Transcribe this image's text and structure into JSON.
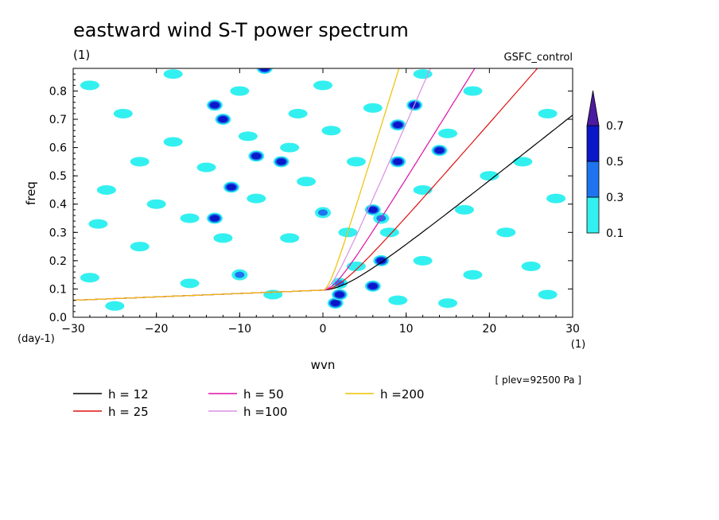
{
  "chart_data": {
    "type": "contour",
    "title": "eastward wind S-T power spectrum",
    "subtitle": "(1)",
    "run_label": "GSFC_control",
    "xlabel": "wvn",
    "x_units": "(1)",
    "ylabel": "freq",
    "y_units": "(day-1)",
    "xlim": [
      -30,
      30
    ],
    "ylim": [
      0,
      0.88
    ],
    "x_ticks": [
      "-30",
      "-20",
      "-10",
      "0",
      "10",
      "20",
      "30"
    ],
    "y_ticks": [
      "0.0",
      "0.1",
      "0.2",
      "0.3",
      "0.4",
      "0.5",
      "0.6",
      "0.7",
      "0.8"
    ],
    "annotation": "[ plev=92500 Pa ]",
    "colorbar": {
      "levels": [
        "0.1",
        "0.3",
        "0.5",
        "0.7"
      ],
      "colors": [
        "#33f0f0",
        "#1e74f0",
        "#0a18c8",
        "#4a1aa0"
      ]
    },
    "dispersion_curves": [
      {
        "name": "h = 12",
        "h": 12,
        "color": "#000000"
      },
      {
        "name": "h = 25",
        "h": 25,
        "color": "#e01010"
      },
      {
        "name": "h = 50",
        "h": 50,
        "color": "#e010a8"
      },
      {
        "name": "h =100",
        "h": 100,
        "color": "#d890e0"
      },
      {
        "name": "h =200",
        "h": 200,
        "color": "#f0c000"
      }
    ],
    "contour_blobs": [
      {
        "x": 1.5,
        "y": 0.05,
        "level": "0.5"
      },
      {
        "x": 2,
        "y": 0.08,
        "level": "0.5"
      },
      {
        "x": 6,
        "y": 0.11,
        "level": "0.5"
      },
      {
        "x": 7,
        "y": 0.2,
        "level": "0.5"
      },
      {
        "x": 9,
        "y": 0.55,
        "level": "0.5"
      },
      {
        "x": 9,
        "y": 0.68,
        "level": "0.5"
      },
      {
        "x": -13,
        "y": 0.75,
        "level": "0.5"
      },
      {
        "x": -12,
        "y": 0.7,
        "level": "0.5"
      },
      {
        "x": -8,
        "y": 0.57,
        "level": "0.5"
      },
      {
        "x": -7,
        "y": 0.88,
        "level": "0.5"
      },
      {
        "x": -13,
        "y": 0.35,
        "level": "0.5"
      },
      {
        "x": -11,
        "y": 0.46,
        "level": "0.5"
      },
      {
        "x": 6,
        "y": 0.38,
        "level": "0.5"
      },
      {
        "x": 11,
        "y": 0.75,
        "level": "0.5"
      },
      {
        "x": 14,
        "y": 0.59,
        "level": "0.5"
      },
      {
        "x": -5,
        "y": 0.55,
        "level": "0.5"
      },
      {
        "x": 0,
        "y": 0.37,
        "level": "0.3"
      },
      {
        "x": 2,
        "y": 0.12,
        "level": "0.3"
      },
      {
        "x": 7,
        "y": 0.35,
        "level": "0.3"
      },
      {
        "x": -10,
        "y": 0.15,
        "level": "0.3"
      },
      {
        "x": -24,
        "y": 0.72,
        "level": "0.1"
      },
      {
        "x": -22,
        "y": 0.55,
        "level": "0.1"
      },
      {
        "x": -18,
        "y": 0.62,
        "level": "0.1"
      },
      {
        "x": -14,
        "y": 0.53,
        "level": "0.1"
      },
      {
        "x": -9,
        "y": 0.64,
        "level": "0.1"
      },
      {
        "x": -4,
        "y": 0.6,
        "level": "0.1"
      },
      {
        "x": 1,
        "y": 0.66,
        "level": "0.1"
      },
      {
        "x": 4,
        "y": 0.55,
        "level": "0.1"
      },
      {
        "x": -26,
        "y": 0.45,
        "level": "0.1"
      },
      {
        "x": -20,
        "y": 0.4,
        "level": "0.1"
      },
      {
        "x": -16,
        "y": 0.35,
        "level": "0.1"
      },
      {
        "x": -8,
        "y": 0.42,
        "level": "0.1"
      },
      {
        "x": -2,
        "y": 0.48,
        "level": "0.1"
      },
      {
        "x": 3,
        "y": 0.3,
        "level": "0.1"
      },
      {
        "x": 8,
        "y": 0.3,
        "level": "0.1"
      },
      {
        "x": 12,
        "y": 0.45,
        "level": "0.1"
      },
      {
        "x": 17,
        "y": 0.38,
        "level": "0.1"
      },
      {
        "x": 22,
        "y": 0.3,
        "level": "0.1"
      },
      {
        "x": 25,
        "y": 0.18,
        "level": "0.1"
      },
      {
        "x": 18,
        "y": 0.15,
        "level": "0.1"
      },
      {
        "x": 12,
        "y": 0.2,
        "level": "0.1"
      },
      {
        "x": 4,
        "y": 0.18,
        "level": "0.1"
      },
      {
        "x": -4,
        "y": 0.28,
        "level": "0.1"
      },
      {
        "x": -12,
        "y": 0.28,
        "level": "0.1"
      },
      {
        "x": -22,
        "y": 0.25,
        "level": "0.1"
      },
      {
        "x": -27,
        "y": 0.33,
        "level": "0.1"
      },
      {
        "x": -28,
        "y": 0.82,
        "level": "0.1"
      },
      {
        "x": -18,
        "y": 0.86,
        "level": "0.1"
      },
      {
        "x": -10,
        "y": 0.8,
        "level": "0.1"
      },
      {
        "x": 0,
        "y": 0.82,
        "level": "0.1"
      },
      {
        "x": 6,
        "y": 0.74,
        "level": "0.1"
      },
      {
        "x": 12,
        "y": 0.86,
        "level": "0.1"
      },
      {
        "x": 18,
        "y": 0.8,
        "level": "0.1"
      },
      {
        "x": 27,
        "y": 0.72,
        "level": "0.1"
      },
      {
        "x": 24,
        "y": 0.55,
        "level": "0.1"
      },
      {
        "x": 28,
        "y": 0.42,
        "level": "0.1"
      },
      {
        "x": 15,
        "y": 0.65,
        "level": "0.1"
      },
      {
        "x": -6,
        "y": 0.08,
        "level": "0.1"
      },
      {
        "x": -16,
        "y": 0.12,
        "level": "0.1"
      },
      {
        "x": -25,
        "y": 0.04,
        "level": "0.1"
      },
      {
        "x": 9,
        "y": 0.06,
        "level": "0.1"
      },
      {
        "x": 15,
        "y": 0.05,
        "level": "0.1"
      },
      {
        "x": 27,
        "y": 0.08,
        "level": "0.1"
      },
      {
        "x": -28,
        "y": 0.14,
        "level": "0.1"
      },
      {
        "x": 20,
        "y": 0.5,
        "level": "0.1"
      },
      {
        "x": -3,
        "y": 0.72,
        "level": "0.1"
      }
    ]
  }
}
